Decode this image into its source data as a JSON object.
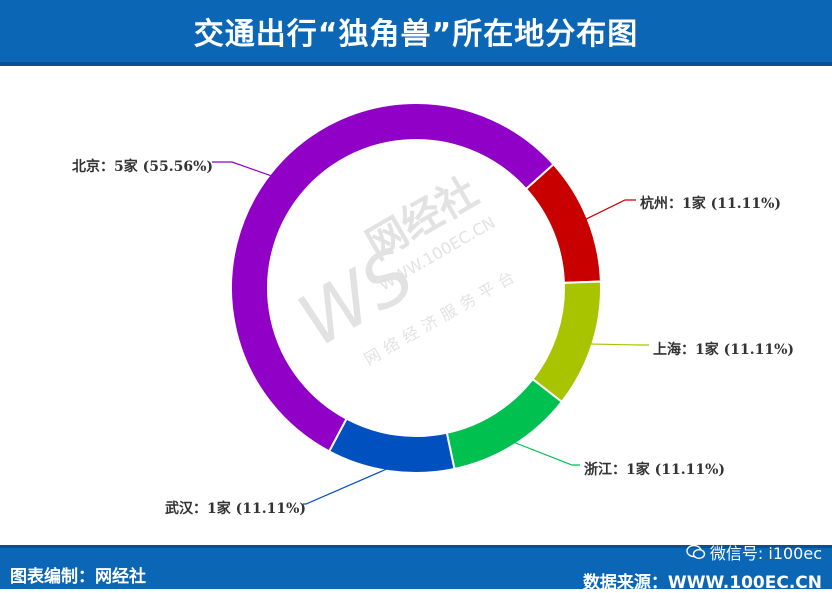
{
  "header": {
    "title": "交通出行“独角兽”所在地分布图"
  },
  "footer": {
    "left_label": "图表编制：网经社",
    "right_label": "数据来源：WWW.100EC.CN",
    "wechat_label": "微信号: i100ec"
  },
  "watermark": {
    "logo_letters": "WS",
    "brand": "网经社",
    "url": "WWW.100EC.CN",
    "tagline": "网络经济服务平台"
  },
  "colors": {
    "header_bg": "#0b66b6",
    "leader_beijing": "#9b00c8",
    "leader_hangzhou": "#c00000",
    "leader_shanghai": "#a5c600",
    "leader_zhejiang": "#00c050",
    "leader_wuhan": "#0050c0"
  },
  "chart_data": {
    "type": "pie",
    "donut": true,
    "title": "",
    "slices": [
      {
        "name": "北京",
        "value": 5,
        "percent": 55.56,
        "label": "北京：5家 (55.56%)",
        "color": "#9000c6"
      },
      {
        "name": "杭州",
        "value": 1,
        "percent": 11.11,
        "label": "杭州：1家 (11.11%)",
        "color": "#c80000"
      },
      {
        "name": "上海",
        "value": 1,
        "percent": 11.11,
        "label": "上海：1家 (11.11%)",
        "color": "#a8c400"
      },
      {
        "name": "浙江",
        "value": 1,
        "percent": 11.11,
        "label": "浙江：1家 (11.11%)",
        "color": "#00c050"
      },
      {
        "name": "武汉",
        "value": 1,
        "percent": 11.11,
        "label": "武汉：1家 (11.11%)",
        "color": "#0050c0"
      }
    ]
  }
}
